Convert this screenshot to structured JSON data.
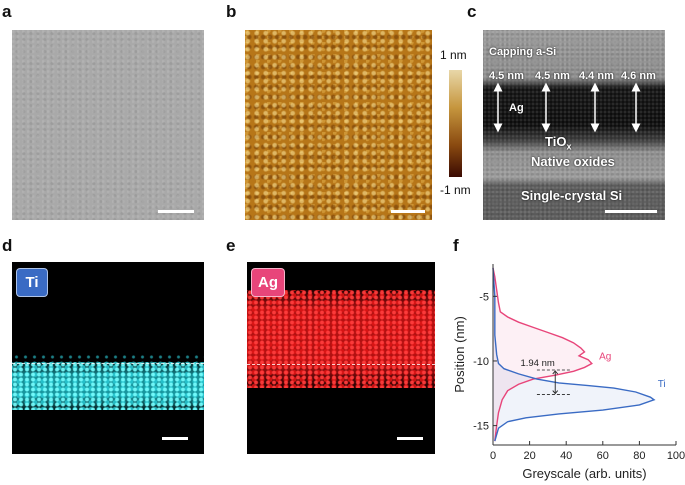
{
  "panel_labels": {
    "a": "a",
    "b": "b",
    "c": "c",
    "d": "d",
    "e": "e",
    "f": "f"
  },
  "afm": {
    "colorbar_top": "1 nm",
    "colorbar_bottom": "-1 nm"
  },
  "tem": {
    "capping": "Capping a-Si",
    "thickness": [
      "4.5 nm",
      "4.5 nm",
      "4.4 nm",
      "4.6 nm"
    ],
    "ag_layer": "Ag",
    "tiox": "TiO",
    "tiox_sub": "x",
    "native": "Native oxides",
    "substrate": "Single-crystal Si"
  },
  "eds": {
    "ti_tag": "Ti",
    "ag_tag": "Ag"
  },
  "colors": {
    "ti": "#3a6bc4",
    "ag": "#e8457a",
    "afm_mid": "#b97a1c",
    "sem": "#a9a9a9"
  },
  "chart_data": {
    "type": "line",
    "xlabel": "Greyscale (arb. units)",
    "ylabel": "Position (nm)",
    "xlim": [
      0,
      100
    ],
    "ylim": [
      -16.5,
      -2.5
    ],
    "y_reversed": true,
    "xticks": [
      0,
      20,
      40,
      60,
      80,
      100
    ],
    "yticks": [
      -5,
      -10,
      -15
    ],
    "series": [
      {
        "name": "Ag",
        "color": "#e8457a",
        "points": [
          [
            0,
            -2.8
          ],
          [
            1,
            -3.5
          ],
          [
            2,
            -4.5
          ],
          [
            3,
            -5.5
          ],
          [
            4,
            -6.2
          ],
          [
            8,
            -6.6
          ],
          [
            14,
            -7.0
          ],
          [
            22,
            -7.4
          ],
          [
            30,
            -7.8
          ],
          [
            38,
            -8.2
          ],
          [
            44,
            -8.6
          ],
          [
            48,
            -9.0
          ],
          [
            50,
            -9.3
          ],
          [
            47,
            -9.6
          ],
          [
            52,
            -9.9
          ],
          [
            54,
            -10.2
          ],
          [
            50,
            -10.5
          ],
          [
            44,
            -10.8
          ],
          [
            34,
            -11.1
          ],
          [
            22,
            -11.4
          ],
          [
            14,
            -11.8
          ],
          [
            8,
            -12.3
          ],
          [
            5,
            -13
          ],
          [
            3,
            -14
          ],
          [
            2,
            -15
          ],
          [
            1,
            -16.2
          ]
        ]
      },
      {
        "name": "Ti",
        "color": "#3a6bc4",
        "points": [
          [
            0,
            -2.8
          ],
          [
            1,
            -5
          ],
          [
            1,
            -8
          ],
          [
            2,
            -9.5
          ],
          [
            3,
            -10.2
          ],
          [
            6,
            -10.6
          ],
          [
            14,
            -11
          ],
          [
            24,
            -11.4
          ],
          [
            36,
            -11.7
          ],
          [
            52,
            -11.9
          ],
          [
            66,
            -12.1
          ],
          [
            78,
            -12.4
          ],
          [
            86,
            -12.8
          ],
          [
            88,
            -13.0
          ],
          [
            80,
            -13.4
          ],
          [
            60,
            -13.8
          ],
          [
            36,
            -14.1
          ],
          [
            18,
            -14.4
          ],
          [
            8,
            -14.7
          ],
          [
            3,
            -15.2
          ],
          [
            1,
            -16.2
          ]
        ]
      }
    ],
    "annotations": [
      {
        "text": "1.94 nm",
        "y1": -10.7,
        "y2": -12.6,
        "x": 34
      }
    ]
  }
}
